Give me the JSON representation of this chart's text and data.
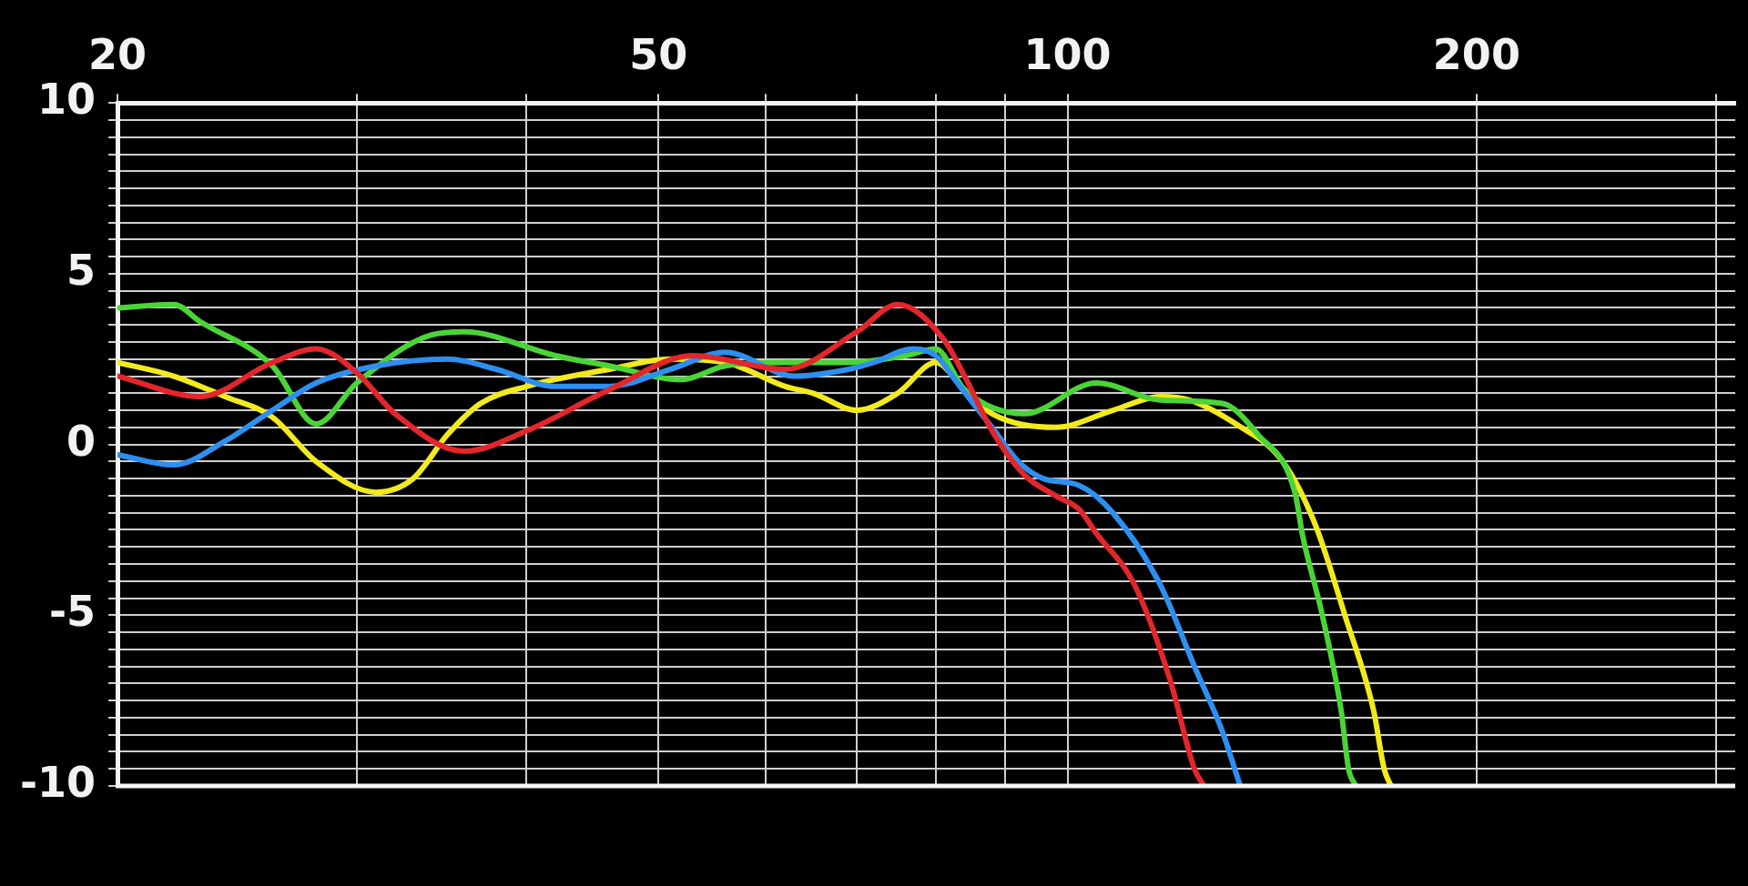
{
  "chart_data": {
    "type": "line",
    "log": "x",
    "grid": true,
    "legend": false,
    "marker": "none",
    "line_style": "solid",
    "xlim": [
      20,
      310
    ],
    "xticks": [
      20,
      {
        "value": 30,
        "label": null
      },
      {
        "value": 40,
        "label": null
      },
      50,
      {
        "value": 60,
        "label": null
      },
      {
        "value": 70,
        "label": null
      },
      {
        "value": 80,
        "label": null
      },
      {
        "value": 90,
        "label": null
      },
      100,
      200,
      {
        "value": 300,
        "label": null
      }
    ],
    "ylim": [
      -10,
      10
    ],
    "yticks": [
      -10,
      {
        "value": -9.5,
        "label": null
      },
      {
        "value": -9,
        "label": null
      },
      {
        "value": -8.5,
        "label": null
      },
      {
        "value": -8,
        "label": null
      },
      {
        "value": -7.5,
        "label": null
      },
      {
        "value": -7,
        "label": null
      },
      {
        "value": -6.5,
        "label": null
      },
      {
        "value": -6,
        "label": null
      },
      {
        "value": -5.5,
        "label": null
      },
      -5,
      {
        "value": -4.5,
        "label": null
      },
      {
        "value": -4,
        "label": null
      },
      {
        "value": -3.5,
        "label": null
      },
      {
        "value": -3,
        "label": null
      },
      {
        "value": -2.5,
        "label": null
      },
      {
        "value": -2,
        "label": null
      },
      {
        "value": -1.5,
        "label": null
      },
      {
        "value": -1,
        "label": null
      },
      {
        "value": -0.5,
        "label": null
      },
      0,
      {
        "value": 0.5,
        "label": null
      },
      {
        "value": 1,
        "label": null
      },
      {
        "value": 1.5,
        "label": null
      },
      {
        "value": 2,
        "label": null
      },
      {
        "value": 2.5,
        "label": null
      },
      {
        "value": 3,
        "label": null
      },
      {
        "value": 3.5,
        "label": null
      },
      {
        "value": 4,
        "label": null
      },
      {
        "value": 4.5,
        "label": null
      },
      5,
      {
        "value": 5.5,
        "label": null
      },
      {
        "value": 6,
        "label": null
      },
      {
        "value": 6.5,
        "label": null
      },
      {
        "value": 7,
        "label": null
      },
      {
        "value": 7.5,
        "label": null
      },
      {
        "value": 8,
        "label": null
      },
      {
        "value": 8.5,
        "label": null
      },
      {
        "value": 9,
        "label": null
      },
      {
        "value": 9.5,
        "label": null
      },
      10
    ],
    "series": [
      {
        "color": "#e3262b",
        "x": [
          20,
          23,
          26,
          28,
          30,
          32,
          36,
          40,
          46,
          53,
          62,
          70,
          75,
          81,
          84,
          88,
          93,
          98,
          102,
          105,
          112,
          119,
          124,
          126
        ],
        "values": [
          2.0,
          1.4,
          2.4,
          2.8,
          2.1,
          0.9,
          -0.2,
          0.4,
          1.6,
          2.6,
          2.2,
          3.3,
          4.1,
          3.1,
          2.0,
          0.4,
          -0.9,
          -1.5,
          -1.9,
          -2.6,
          -4.1,
          -6.9,
          -9.5,
          -10
        ]
      },
      {
        "color": "#2d8ff0",
        "x": [
          20,
          22,
          24,
          26,
          28,
          31,
          35,
          38,
          42,
          46,
          51,
          56,
          63,
          69,
          72,
          77,
          80,
          83,
          88,
          92,
          96,
          102,
          108,
          117,
          124,
          130,
          133,
          134
        ],
        "values": [
          -0.3,
          -0.6,
          0.1,
          1.0,
          1.8,
          2.3,
          2.5,
          2.2,
          1.7,
          1.7,
          2.2,
          2.7,
          2.0,
          2.2,
          2.4,
          2.8,
          2.6,
          1.8,
          0.5,
          -0.5,
          -1.0,
          -1.2,
          -2.0,
          -4.1,
          -6.5,
          -8.4,
          -9.6,
          -10
        ]
      },
      {
        "color": "#4bd437",
        "x": [
          20,
          22,
          23,
          26,
          28,
          30,
          34,
          36,
          42,
          46,
          52,
          56,
          62,
          69,
          76,
          80,
          84,
          93,
          105,
          117,
          130,
          138,
          147,
          149,
          154,
          159,
          161,
          163
        ],
        "values": [
          4.0,
          4.1,
          3.6,
          2.3,
          0.6,
          1.8,
          3.2,
          3.3,
          2.6,
          2.3,
          1.9,
          2.3,
          2.4,
          2.4,
          2.6,
          2.8,
          1.6,
          0.9,
          1.8,
          1.3,
          1.2,
          0.3,
          -1.4,
          -2.7,
          -5.0,
          -7.8,
          -9.5,
          -10
        ]
      },
      {
        "color": "#f2ea1c",
        "x": [
          20,
          22,
          24,
          26,
          28,
          31,
          33,
          35,
          37,
          40,
          46,
          51,
          56,
          62,
          65,
          70,
          75,
          80,
          84,
          88,
          98,
          108,
          117,
          123,
          133,
          144,
          152,
          160,
          168,
          171,
          173
        ],
        "values": [
          2.4,
          2.0,
          1.4,
          0.8,
          -0.5,
          -1.4,
          -1.0,
          0.3,
          1.2,
          1.7,
          2.2,
          2.5,
          2.4,
          1.7,
          1.5,
          1.0,
          1.5,
          2.4,
          1.6,
          0.9,
          0.5,
          1.0,
          1.4,
          1.3,
          0.6,
          -0.5,
          -2.3,
          -5.0,
          -7.8,
          -9.5,
          -10
        ]
      }
    ]
  }
}
